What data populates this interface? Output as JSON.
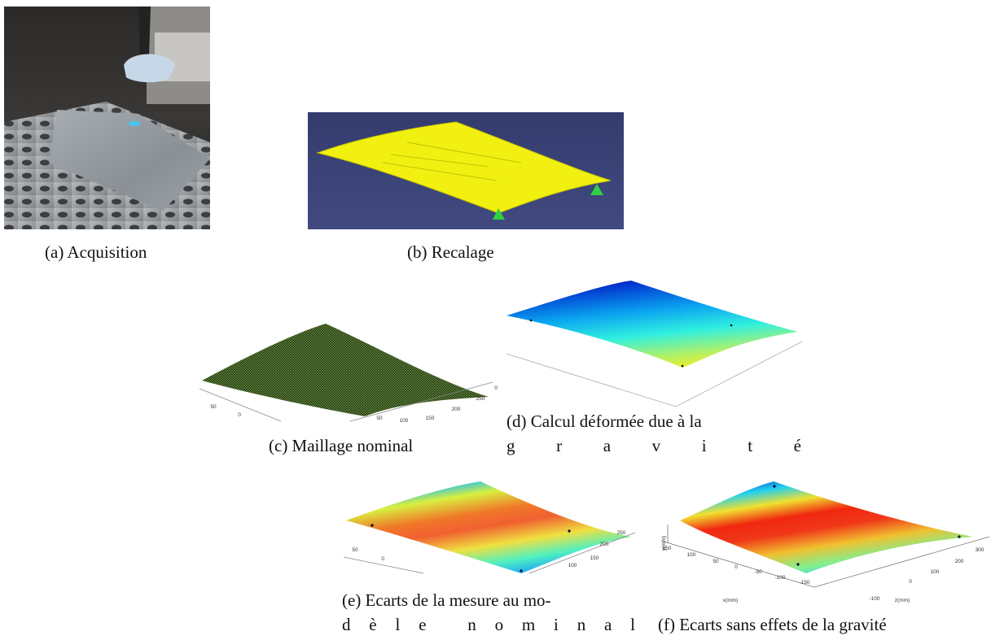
{
  "figures": [
    {
      "caption": [
        "(a) Acquisition"
      ]
    },
    {
      "caption": [
        "(b) Recalage"
      ]
    },
    {
      "caption": [
        "(c) Maillage nominal"
      ],
      "ticks": [
        "50",
        "0",
        "0",
        "250",
        "200",
        "150",
        "100",
        "50"
      ]
    },
    {
      "caption": [
        "(d) Calcul déformée due à la",
        "gravité"
      ]
    },
    {
      "caption": [
        "(e) Ecarts de la mesure au mo-",
        "dèle nominal"
      ],
      "ticks": [
        "50",
        "0",
        "100",
        "150",
        "200",
        "250"
      ]
    },
    {
      "caption": [
        "(f) Ecarts sans effets de la gravité"
      ],
      "ticks": [
        "y(mm)",
        "150",
        "100",
        "50",
        "0",
        "-50",
        "-100",
        "-150",
        "x(mm)",
        "-100",
        "0",
        "100",
        "200",
        "300",
        "z(mm)"
      ]
    }
  ]
}
